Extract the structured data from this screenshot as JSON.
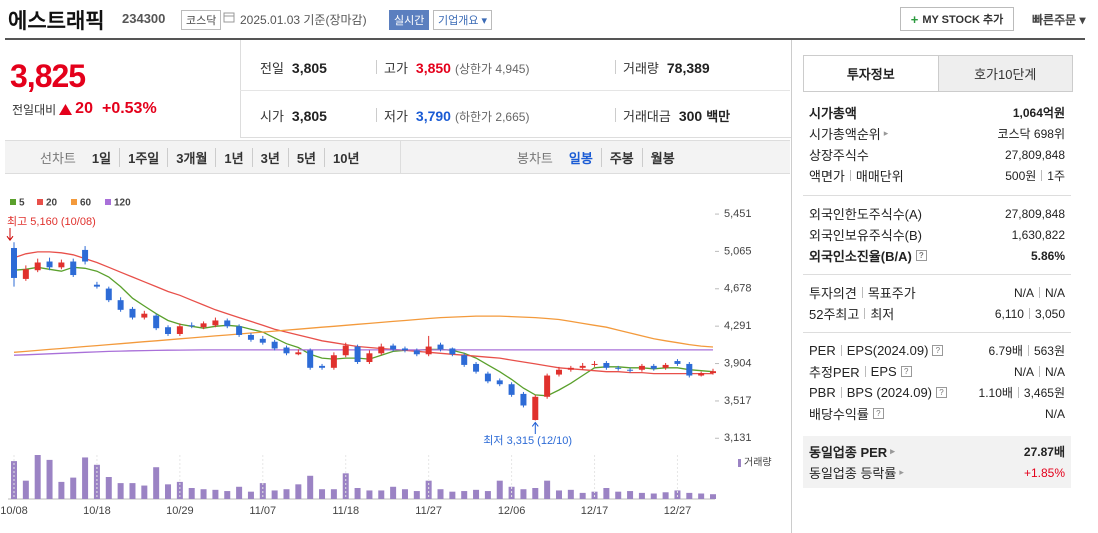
{
  "header": {
    "title": "에스트래픽",
    "code": "234300",
    "market": "코스닥",
    "date": "2025.01.03 기준(장마감)",
    "realtime": "실시간",
    "company_menu": "기업개요",
    "mystock_button": "MY STOCK 추가",
    "quick_order": "빠른주문"
  },
  "quote": {
    "price": "3,825",
    "change_label": "전일대비",
    "change": "20",
    "change_rate": "+0.53%",
    "cells": [
      {
        "label": "전일",
        "value": "3,805"
      },
      {
        "label": "고가",
        "value": "3,850",
        "note": "(상한가 4,945)"
      },
      {
        "label": "거래량",
        "value": "78,389"
      },
      {
        "label": "시가",
        "value": "3,805"
      },
      {
        "label": "저가",
        "value": "3,790",
        "note": "(하한가 2,665)"
      },
      {
        "label": "거래대금",
        "value": "300",
        "note": "백만"
      }
    ]
  },
  "period_tabs": {
    "line_chart": "선차트",
    "line_periods": [
      "1일",
      "1주일",
      "3개월",
      "1년",
      "3년",
      "5년",
      "10년"
    ],
    "candle_chart": "봉차트",
    "candle_periods": [
      "일봉",
      "주봉",
      "월봉"
    ]
  },
  "chart_data": {
    "type": "candlestick",
    "categories": [
      "10/08",
      null,
      null,
      null,
      null,
      null,
      null,
      "10/18",
      null,
      null,
      null,
      null,
      null,
      null,
      "10/29",
      null,
      null,
      null,
      null,
      null,
      null,
      "11/07",
      null,
      null,
      null,
      null,
      null,
      null,
      "11/18",
      null,
      null,
      null,
      null,
      null,
      null,
      "11/27",
      null,
      null,
      null,
      null,
      null,
      null,
      "12/06",
      null,
      null,
      null,
      null,
      null,
      null,
      "12/17",
      null,
      null,
      null,
      null,
      null,
      null,
      "12/27",
      null,
      null,
      null
    ],
    "open": [
      5100,
      4780,
      4870,
      4960,
      4900,
      4960,
      5080,
      4720,
      4680,
      4560,
      4470,
      4380,
      4400,
      4280,
      4210,
      4300,
      4280,
      4300,
      4350,
      4290,
      4200,
      4160,
      4130,
      4070,
      4000,
      4040,
      3880,
      3860,
      3990,
      4080,
      3920,
      4010,
      4090,
      4060,
      4040,
      4000,
      4100,
      4060,
      3990,
      3900,
      3800,
      3730,
      3690,
      3590,
      3320,
      3560,
      3790,
      3840,
      3860,
      3890,
      3910,
      3860,
      3840,
      3840,
      3880,
      3860,
      3930,
      3900,
      3780,
      3805
    ],
    "high": [
      5160,
      4920,
      4990,
      5000,
      4980,
      4990,
      5120,
      4750,
      4700,
      4590,
      4490,
      4450,
      4420,
      4300,
      4320,
      4330,
      4340,
      4380,
      4370,
      4310,
      4220,
      4190,
      4150,
      4090,
      4050,
      4060,
      3900,
      4020,
      4120,
      4100,
      4040,
      4110,
      4110,
      4080,
      4060,
      4190,
      4120,
      4070,
      4010,
      3920,
      3820,
      3750,
      3710,
      3610,
      3580,
      3800,
      3870,
      3880,
      3910,
      3930,
      3930,
      3880,
      3860,
      3900,
      3900,
      3910,
      3950,
      3920,
      3820,
      3850
    ],
    "low": [
      4700,
      4760,
      4850,
      4870,
      4880,
      4800,
      4930,
      4680,
      4540,
      4440,
      4360,
      4360,
      4250,
      4190,
      4190,
      4270,
      4260,
      4280,
      4270,
      4180,
      4130,
      4100,
      4040,
      3990,
      3990,
      3840,
      3840,
      3840,
      3970,
      3900,
      3900,
      3990,
      4030,
      4020,
      3980,
      3980,
      4030,
      3980,
      3870,
      3800,
      3700,
      3670,
      3560,
      3450,
      3315,
      3540,
      3770,
      3820,
      3840,
      3870,
      3840,
      3830,
      3810,
      3820,
      3830,
      3840,
      3880,
      3760,
      3770,
      3790
    ],
    "close": [
      4790,
      4880,
      4950,
      4900,
      4950,
      4820,
      4960,
      4700,
      4560,
      4460,
      4380,
      4420,
      4270,
      4210,
      4290,
      4290,
      4320,
      4350,
      4290,
      4200,
      4150,
      4120,
      4060,
      4010,
      4020,
      3860,
      3860,
      3990,
      4090,
      3920,
      4010,
      4080,
      4050,
      4040,
      4000,
      4080,
      4050,
      4000,
      3890,
      3820,
      3720,
      3690,
      3580,
      3470,
      3560,
      3780,
      3840,
      3860,
      3880,
      3900,
      3860,
      3850,
      3830,
      3880,
      3850,
      3890,
      3900,
      3780,
      3805,
      3825
    ],
    "series": [
      {
        "name": "5",
        "color": "#5aa02c",
        "values": [
          4870,
          4880,
          4900,
          4880,
          4860,
          4900,
          4890,
          4860,
          4800,
          4700,
          4580,
          4500,
          4420,
          4350,
          4310,
          4290,
          4270,
          4290,
          4300,
          4290,
          4260,
          4230,
          4170,
          4110,
          4070,
          4000,
          3960,
          3950,
          3960,
          3960,
          3950,
          3990,
          4030,
          4040,
          4040,
          4050,
          4050,
          4040,
          4010,
          3960,
          3890,
          3820,
          3740,
          3650,
          3580,
          3570,
          3630,
          3700,
          3780,
          3860,
          3870,
          3870,
          3860,
          3860,
          3850,
          3860,
          3860,
          3840,
          3830,
          3820
        ]
      },
      {
        "name": "20",
        "color": "#e8504a",
        "values": [
          5000,
          5040,
          5060,
          5060,
          5050,
          5030,
          4990,
          4950,
          4900,
          4850,
          4800,
          4750,
          4700,
          4650,
          4610,
          4560,
          4510,
          4460,
          4420,
          4380,
          4340,
          4300,
          4260,
          4230,
          4200,
          4170,
          4140,
          4120,
          4100,
          4080,
          4070,
          4060,
          4050,
          4040,
          4030,
          4020,
          4010,
          4000,
          3990,
          3980,
          3970,
          3960,
          3940,
          3920,
          3900,
          3880,
          3860,
          3850,
          3840,
          3830,
          3820,
          3820,
          3810,
          3810,
          3800,
          3800,
          3800,
          3800,
          3800,
          3800
        ]
      },
      {
        "name": "60",
        "color": "#f39a3c",
        "values": [
          4020,
          4030,
          4040,
          4050,
          4060,
          4070,
          4080,
          4090,
          4100,
          4110,
          4120,
          4130,
          4140,
          4150,
          4160,
          4170,
          4180,
          4190,
          4200,
          4210,
          4220,
          4230,
          4240,
          4250,
          4260,
          4270,
          4280,
          4290,
          4300,
          4310,
          4320,
          4330,
          4340,
          4350,
          4360,
          4370,
          4380,
          4385,
          4390,
          4395,
          4395,
          4395,
          4390,
          4385,
          4380,
          4370,
          4360,
          4340,
          4320,
          4300,
          4280,
          4250,
          4220,
          4190,
          4160,
          4140,
          4120,
          4100,
          4085,
          4075
        ]
      },
      {
        "name": "120",
        "color": "#a970d9",
        "values": [
          3990,
          3995,
          4000,
          4005,
          4010,
          4015,
          4020,
          4025,
          4030,
          4033,
          4036,
          4038,
          4040,
          4042,
          4043,
          4044,
          4045,
          4045,
          4045,
          4045,
          4045,
          4045,
          4045,
          4045,
          4045,
          4045,
          4045,
          4045,
          4045,
          4045,
          4045,
          4045,
          4045,
          4045,
          4045,
          4045,
          4045,
          4045,
          4045,
          4045,
          4045,
          4045,
          4045,
          4045,
          4045,
          4045,
          4045,
          4045,
          4045,
          4045,
          4045,
          4045,
          4045,
          4045,
          4045,
          4045,
          4045,
          4045,
          4045,
          4045
        ]
      }
    ],
    "up_color": "#e0312d",
    "down_color": "#2d6bd6",
    "ylim": [
      3030,
      5545
    ],
    "yticks": [
      {
        "value": 5451,
        "label": "5,451"
      },
      {
        "value": 5065,
        "label": "5,065"
      },
      {
        "value": 4678,
        "label": "4,678"
      },
      {
        "value": 4291,
        "label": "4,291"
      },
      {
        "value": 3904,
        "label": "3,904"
      },
      {
        "value": 3517,
        "label": "3,517"
      },
      {
        "value": 3131,
        "label": "3,131"
      }
    ],
    "annotations": {
      "high": "최고 5,160 (10/08)",
      "low": "최저 3,315 (12/10)"
    },
    "volume": {
      "name": "거래량",
      "color": "#9b83c4",
      "values": [
        620000,
        300000,
        720000,
        640000,
        280000,
        350000,
        680000,
        560000,
        360000,
        260000,
        260000,
        220000,
        520000,
        240000,
        280000,
        180000,
        160000,
        150000,
        130000,
        200000,
        120000,
        260000,
        140000,
        160000,
        240000,
        380000,
        160000,
        160000,
        420000,
        180000,
        140000,
        140000,
        200000,
        160000,
        130000,
        300000,
        160000,
        120000,
        130000,
        150000,
        130000,
        300000,
        200000,
        160000,
        180000,
        300000,
        140000,
        150000,
        100000,
        120000,
        180000,
        120000,
        130000,
        100000,
        90000,
        110000,
        140000,
        100000,
        90000,
        78389
      ]
    }
  },
  "info_panel": {
    "tabs": [
      "투자정보",
      "호가10단계"
    ],
    "sections": [
      {
        "rows": [
          {
            "label": [
              "시가총액"
            ],
            "value": [
              "1,064억원"
            ]
          },
          {
            "label": [
              "시가총액순위"
            ],
            "value": [
              "코스닥 698위"
            ]
          },
          {
            "label": [
              "상장주식수"
            ],
            "value": [
              "27,809,848"
            ]
          },
          {
            "label": [
              "액면가",
              "매매단위"
            ],
            "value": [
              "500원",
              "1주"
            ]
          }
        ]
      },
      {
        "rows": [
          {
            "label": [
              "외국인한도주식수(A)"
            ],
            "value": [
              "27,809,848"
            ]
          },
          {
            "label": [
              "외국인보유주식수(B)"
            ],
            "value": [
              "1,630,822"
            ]
          },
          {
            "label": [
              "외국인소진율(B/A)"
            ],
            "value": [
              "5.86%"
            ]
          }
        ]
      },
      {
        "rows": [
          {
            "label": [
              "투자의견",
              "목표주가"
            ],
            "value": [
              "N/A",
              "N/A"
            ]
          },
          {
            "label": [
              "52주최고",
              "최저"
            ],
            "value": [
              "6,110",
              "3,050"
            ]
          }
        ]
      },
      {
        "rows": [
          {
            "label": [
              "PER",
              "EPS(2024.09)"
            ],
            "value": [
              "6.79배",
              "563원"
            ]
          },
          {
            "label": [
              "추정PER",
              "EPS"
            ],
            "value": [
              "N/A",
              "N/A"
            ]
          },
          {
            "label": [
              "PBR",
              "BPS (2024.09)"
            ],
            "value": [
              "1.10배",
              "3,465원"
            ]
          },
          {
            "label": [
              "배당수익률"
            ],
            "value": [
              "N/A"
            ]
          }
        ]
      },
      {
        "rows": [
          {
            "label": [
              "동일업종 PER"
            ],
            "value": [
              "27.87배"
            ]
          },
          {
            "label": [
              "동일업종 등락률"
            ],
            "value": [
              "+1.85%"
            ]
          }
        ]
      }
    ]
  }
}
